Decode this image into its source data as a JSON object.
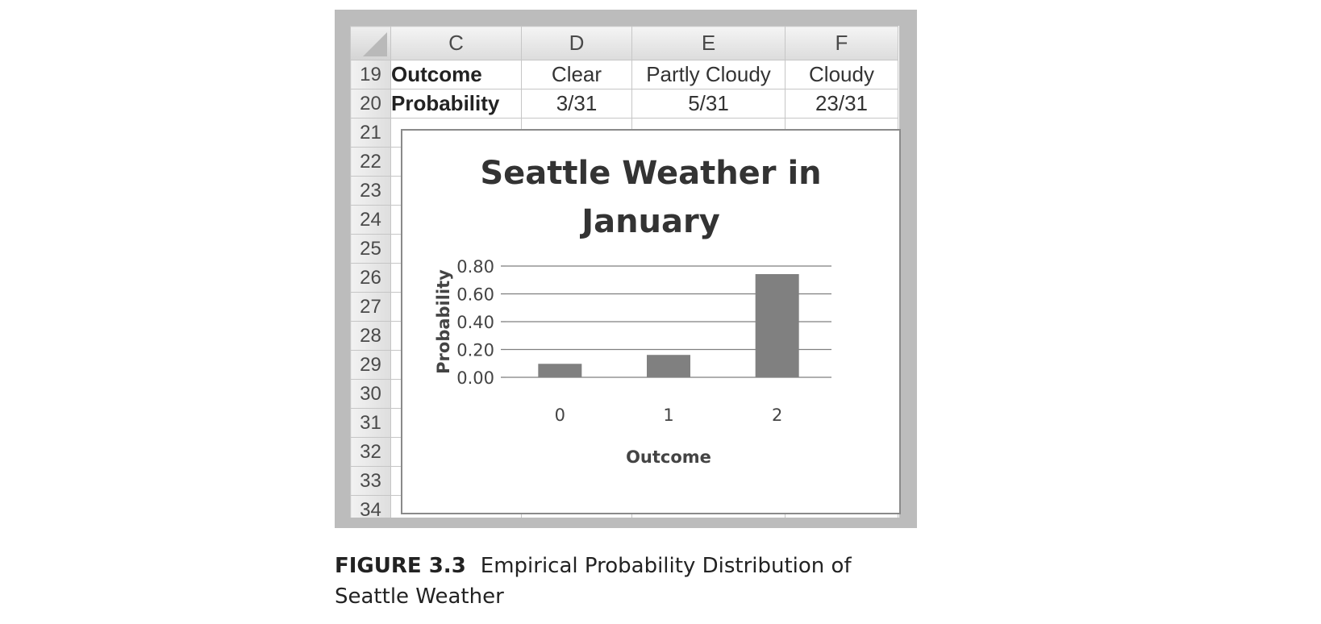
{
  "sheet": {
    "column_headers": [
      "C",
      "D",
      "E",
      "F"
    ],
    "rows": [
      {
        "num": "19",
        "cells": [
          "Outcome",
          "Clear",
          "Partly Cloudy",
          "Cloudy"
        ]
      },
      {
        "num": "20",
        "cells": [
          "Probability",
          "3/31",
          "5/31",
          "23/31"
        ]
      },
      {
        "num": "21"
      },
      {
        "num": "22"
      },
      {
        "num": "23"
      },
      {
        "num": "24"
      },
      {
        "num": "25"
      },
      {
        "num": "26"
      },
      {
        "num": "27"
      },
      {
        "num": "28"
      },
      {
        "num": "29"
      },
      {
        "num": "30"
      },
      {
        "num": "31"
      },
      {
        "num": "32"
      },
      {
        "num": "33"
      },
      {
        "num": "34"
      }
    ]
  },
  "chart_data": {
    "type": "bar",
    "title": "Seattle Weather in January",
    "title_lines": [
      "Seattle Weather in",
      "January"
    ],
    "categories": [
      "0",
      "1",
      "2"
    ],
    "values": [
      0.097,
      0.161,
      0.742
    ],
    "xlabel": "Outcome",
    "ylabel": "Probability",
    "ylim": [
      0,
      0.8
    ],
    "yticks": [
      "0.00",
      "0.20",
      "0.40",
      "0.60",
      "0.80"
    ],
    "ytick_values": [
      0,
      0.2,
      0.4,
      0.6,
      0.8
    ],
    "grid": true,
    "legend": "none",
    "bar_color": "#808080"
  },
  "caption": {
    "label": "FIGURE 3.3",
    "text": "Empirical Probability Distribution of Seattle Weather"
  }
}
